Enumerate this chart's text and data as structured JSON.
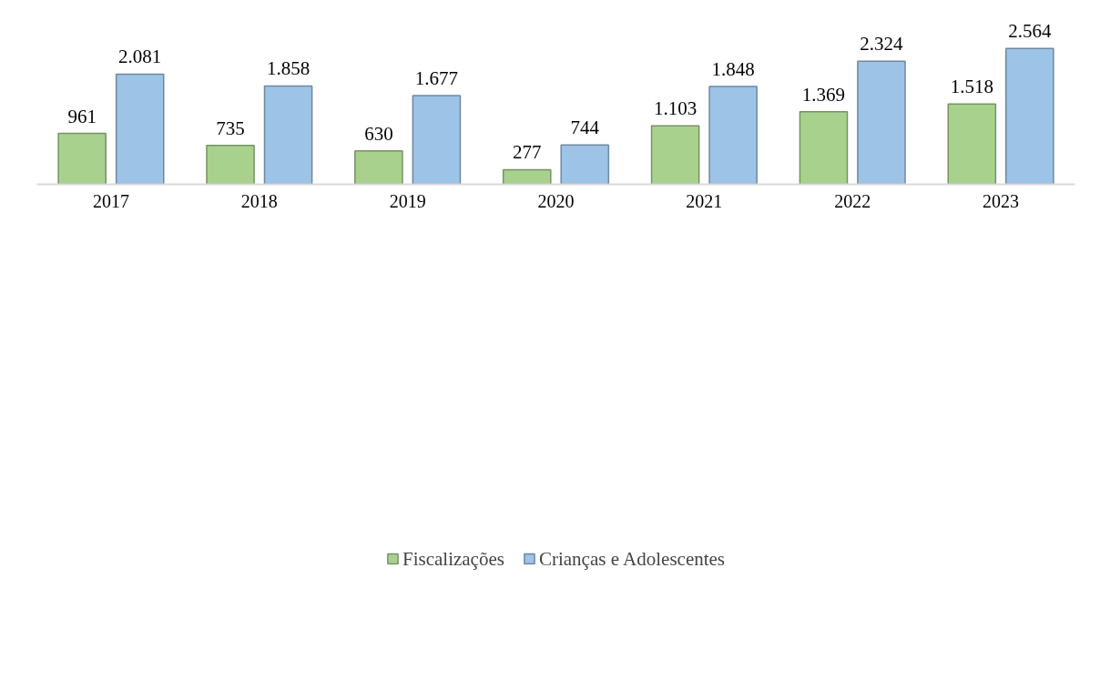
{
  "chart_data": {
    "type": "bar",
    "categories": [
      "2017",
      "2018",
      "2019",
      "2020",
      "2021",
      "2022",
      "2023"
    ],
    "series": [
      {
        "name": "Fiscalizações",
        "color": "#a9d18e",
        "values": [
          961,
          735,
          630,
          277,
          1103,
          1369,
          1518
        ],
        "value_labels": [
          "961",
          "735",
          "630",
          "277",
          "1.103",
          "1.369",
          "1.518"
        ]
      },
      {
        "name": "Crianças e Adolescentes",
        "color": "#9dc3e6",
        "values": [
          2081,
          1858,
          1677,
          744,
          1848,
          2324,
          2564
        ],
        "value_labels": [
          "2.081",
          "1.858",
          "1.677",
          "744",
          "1.848",
          "2.324",
          "2.564"
        ]
      }
    ],
    "legend": "bottom",
    "grid": false
  }
}
